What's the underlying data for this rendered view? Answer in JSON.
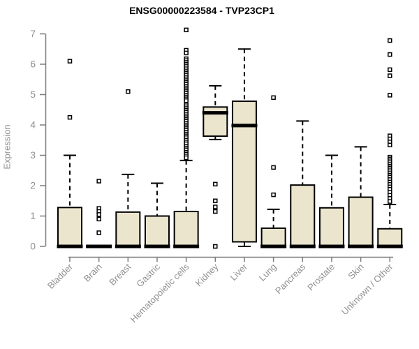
{
  "chart_data": {
    "type": "boxplot",
    "title": "ENSG00000223584 - TVP23CP1",
    "xlabel": "",
    "ylabel": "Expression",
    "ylim": [
      0,
      7
    ],
    "yticks": [
      0,
      1,
      2,
      3,
      4,
      5,
      6,
      7
    ],
    "grid": false,
    "legend": "none",
    "colors": {
      "box_fill": "#EBE5CE",
      "box_border": "#000000",
      "median": "#000000",
      "whisker": "#000000",
      "outlier_fill": "#ffffff",
      "axis": "#7d7d7d",
      "tick_text": "#909090",
      "title_text": "#000000",
      "background": "#ffffff"
    },
    "categories": [
      "Bladder",
      "Brain",
      "Breast",
      "Gastric",
      "Hematopoietic cells",
      "Kidney",
      "Liver",
      "Lung",
      "Pancreas",
      "Prostate",
      "Skin",
      "Unknown / Other"
    ],
    "series": [
      {
        "name": "Bladder",
        "q1": 0,
        "median": 0,
        "q3": 1.28,
        "whisker_low": 0,
        "whisker_high": 3.0,
        "outliers": [
          6.1,
          4.25
        ]
      },
      {
        "name": "Brain",
        "q1": 0,
        "median": 0,
        "q3": 0,
        "whisker_low": 0,
        "whisker_high": 0,
        "outliers": [
          2.15,
          1.25,
          1.15,
          1.05,
          0.9,
          0.45
        ]
      },
      {
        "name": "Breast",
        "q1": 0,
        "median": 0,
        "q3": 1.13,
        "whisker_low": 0,
        "whisker_high": 2.37,
        "outliers": [
          5.1
        ]
      },
      {
        "name": "Gastric",
        "q1": 0,
        "median": 0,
        "q3": 1.0,
        "whisker_low": 0,
        "whisker_high": 2.08,
        "outliers": []
      },
      {
        "name": "Hematopoietic cells",
        "q1": 0,
        "median": 0,
        "q3": 1.15,
        "whisker_low": 0,
        "whisker_high": 2.83,
        "outliers": [
          7.13,
          6.46,
          6.37,
          6.18,
          6.12,
          6.06,
          6.0,
          5.94,
          5.88,
          5.82,
          5.76,
          5.7,
          5.64,
          5.58,
          5.52,
          5.46,
          5.4,
          5.34,
          5.28,
          5.22,
          5.16,
          5.1,
          5.04,
          4.98,
          4.92,
          4.86,
          4.8,
          4.66,
          4.6,
          4.54,
          4.48,
          4.42,
          4.36,
          4.3,
          4.24,
          4.18,
          4.12,
          4.06,
          4.0,
          3.94,
          3.88,
          3.82,
          3.76,
          3.7,
          3.64,
          3.58,
          3.5,
          3.44,
          3.38,
          3.3,
          3.24,
          3.18,
          3.1,
          3.04,
          2.98,
          2.92
        ]
      },
      {
        "name": "Kidney",
        "q1": 3.63,
        "median": 4.4,
        "q3": 4.59,
        "whisker_low": 3.52,
        "whisker_high": 5.29,
        "outliers": [
          2.05,
          1.5,
          1.3,
          1.15,
          0
        ]
      },
      {
        "name": "Liver",
        "q1": 0.15,
        "median": 3.98,
        "q3": 4.78,
        "whisker_low": 0,
        "whisker_high": 6.5,
        "outliers": []
      },
      {
        "name": "Lung",
        "q1": 0,
        "median": 0,
        "q3": 0.6,
        "whisker_low": 0,
        "whisker_high": 1.22,
        "outliers": [
          4.9,
          2.6,
          1.7
        ]
      },
      {
        "name": "Pancreas",
        "q1": 0,
        "median": 0,
        "q3": 2.02,
        "whisker_low": 0,
        "whisker_high": 4.13,
        "outliers": []
      },
      {
        "name": "Prostate",
        "q1": 0,
        "median": 0,
        "q3": 1.27,
        "whisker_low": 0,
        "whisker_high": 3.0,
        "outliers": []
      },
      {
        "name": "Skin",
        "q1": 0,
        "median": 0,
        "q3": 1.62,
        "whisker_low": 0,
        "whisker_high": 3.28,
        "outliers": []
      },
      {
        "name": "Unknown / Other",
        "q1": 0,
        "median": 0,
        "q3": 0.58,
        "whisker_low": 0,
        "whisker_high": 1.38,
        "outliers": [
          6.78,
          6.32,
          5.82,
          5.62,
          4.98,
          3.64,
          3.54,
          3.44,
          3.34,
          2.94,
          2.88,
          2.82,
          2.76,
          2.7,
          2.64,
          2.58,
          2.52,
          2.46,
          2.4,
          2.34,
          2.28,
          2.2,
          2.12,
          2.04,
          1.96,
          1.88,
          1.78,
          1.68,
          1.58,
          1.48
        ]
      }
    ]
  }
}
